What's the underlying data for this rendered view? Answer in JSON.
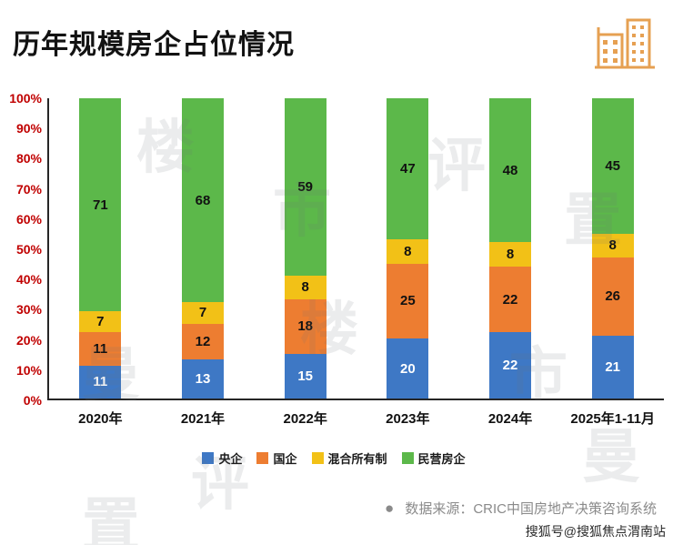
{
  "title": "历年规模房企占位情况",
  "chart_data": {
    "type": "bar",
    "stacked": true,
    "percent": true,
    "title": "历年规模房企占位情况",
    "categories": [
      "2020年",
      "2021年",
      "2022年",
      "2023年",
      "2024年",
      "2025年1-11月"
    ],
    "series": [
      {
        "name": "央企",
        "color": "#3E78C5",
        "label_color": "#ffffff",
        "values": [
          11,
          13,
          15,
          20,
          22,
          21
        ]
      },
      {
        "name": "国企",
        "color": "#ED7D31",
        "label_color": "#111111",
        "values": [
          11,
          12,
          18,
          25,
          22,
          26
        ]
      },
      {
        "name": "混合所有制",
        "color": "#F2C117",
        "label_color": "#111111",
        "values": [
          7,
          7,
          8,
          8,
          8,
          8
        ]
      },
      {
        "name": "民营房企",
        "color": "#5CB84A",
        "label_color": "#111111",
        "values": [
          71,
          68,
          59,
          47,
          48,
          45
        ]
      }
    ],
    "y_ticks": [
      "100%",
      "90%",
      "80%",
      "70%",
      "60%",
      "50%",
      "40%",
      "30%",
      "20%",
      "10%",
      "0%"
    ],
    "ylim": [
      0,
      100
    ],
    "ylabel": "",
    "xlabel": "",
    "grid": false,
    "legend_position": "bottom",
    "y_tick_color": "#C00000"
  },
  "header_icon": "buildings-icon",
  "source": {
    "bullet": "●",
    "text": "数据来源：CRIC中国房地产决策咨询系统"
  },
  "footer": {
    "text": "搜狐号@搜狐焦点渭南站"
  },
  "watermark": {
    "chars": [
      "楼",
      "市",
      "评",
      "置",
      "曼"
    ]
  }
}
